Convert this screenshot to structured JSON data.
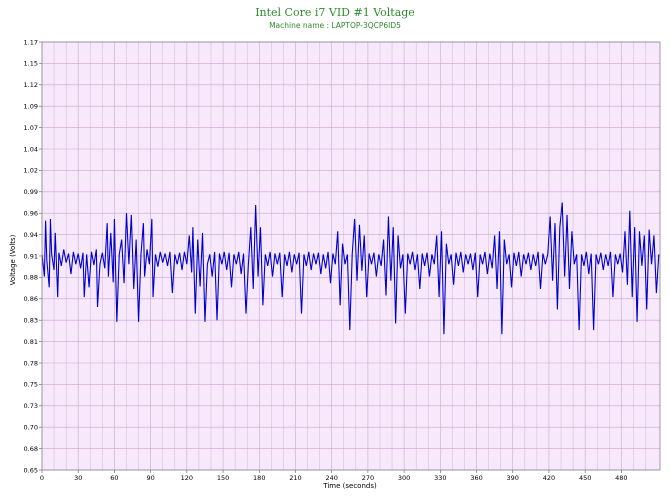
{
  "chart_data": {
    "type": "line",
    "title": "Intel Core i7 VID #1 Voltage",
    "subtitle": "Machine name : LAPTOP-3QCP6ID5",
    "xlabel": "Time (seconds)",
    "ylabel": "Voltage (Volts)",
    "xlim": [
      0,
      512
    ],
    "ylim": [
      0.65,
      1.17
    ],
    "x_ticks": [
      "0",
      "30",
      "60",
      "90",
      "120",
      "150",
      "180",
      "210",
      "240",
      "270",
      "300",
      "330",
      "360",
      "390",
      "420",
      "450",
      "480"
    ],
    "y_ticks": [
      "0.65",
      "0.68",
      "0.70",
      "0.73",
      "0.75",
      "0.78",
      "0.81",
      "0.83",
      "0.86",
      "0.88",
      "0.91",
      "0.94",
      "0.96",
      "0.99",
      "1.02",
      "1.04",
      "1.07",
      "1.09",
      "1.12",
      "1.15",
      "1.17"
    ],
    "grid": true,
    "colors": {
      "plot_background": "#f7e8fb",
      "grid": "#c8a9cc",
      "line": "#0000cc",
      "title": "#2e8b2e"
    },
    "series": [
      {
        "values": [
          {
            "x": 0,
            "y": 0.912
          },
          {
            "x": 2,
            "y": 0.885
          },
          {
            "x": 3,
            "y": 0.953
          },
          {
            "x": 4,
            "y": 0.905
          },
          {
            "x": 6,
            "y": 0.872
          },
          {
            "x": 7,
            "y": 0.955
          },
          {
            "x": 8,
            "y": 0.912
          },
          {
            "x": 10,
            "y": 0.893
          },
          {
            "x": 11,
            "y": 0.938
          },
          {
            "x": 13,
            "y": 0.86
          },
          {
            "x": 14,
            "y": 0.914
          },
          {
            "x": 16,
            "y": 0.898
          },
          {
            "x": 18,
            "y": 0.918
          },
          {
            "x": 20,
            "y": 0.902
          },
          {
            "x": 22,
            "y": 0.913
          },
          {
            "x": 24,
            "y": 0.888
          },
          {
            "x": 26,
            "y": 0.915
          },
          {
            "x": 28,
            "y": 0.9
          },
          {
            "x": 30,
            "y": 0.913
          },
          {
            "x": 32,
            "y": 0.895
          },
          {
            "x": 34,
            "y": 0.914
          },
          {
            "x": 35,
            "y": 0.86
          },
          {
            "x": 37,
            "y": 0.912
          },
          {
            "x": 39,
            "y": 0.872
          },
          {
            "x": 41,
            "y": 0.915
          },
          {
            "x": 43,
            "y": 0.899
          },
          {
            "x": 45,
            "y": 0.918
          },
          {
            "x": 46,
            "y": 0.848
          },
          {
            "x": 48,
            "y": 0.9
          },
          {
            "x": 50,
            "y": 0.914
          },
          {
            "x": 52,
            "y": 0.895
          },
          {
            "x": 54,
            "y": 0.95
          },
          {
            "x": 55,
            "y": 0.885
          },
          {
            "x": 57,
            "y": 0.938
          },
          {
            "x": 59,
            "y": 0.878
          },
          {
            "x": 60,
            "y": 0.955
          },
          {
            "x": 62,
            "y": 0.83
          },
          {
            "x": 64,
            "y": 0.912
          },
          {
            "x": 66,
            "y": 0.93
          },
          {
            "x": 68,
            "y": 0.877
          },
          {
            "x": 70,
            "y": 0.962
          },
          {
            "x": 72,
            "y": 0.9
          },
          {
            "x": 74,
            "y": 0.96
          },
          {
            "x": 76,
            "y": 0.87
          },
          {
            "x": 78,
            "y": 0.93
          },
          {
            "x": 80,
            "y": 0.83
          },
          {
            "x": 82,
            "y": 0.912
          },
          {
            "x": 84,
            "y": 0.95
          },
          {
            "x": 85,
            "y": 0.885
          },
          {
            "x": 87,
            "y": 0.918
          },
          {
            "x": 89,
            "y": 0.9
          },
          {
            "x": 91,
            "y": 0.955
          },
          {
            "x": 92,
            "y": 0.86
          },
          {
            "x": 94,
            "y": 0.912
          },
          {
            "x": 96,
            "y": 0.897
          },
          {
            "x": 98,
            "y": 0.915
          },
          {
            "x": 100,
            "y": 0.902
          },
          {
            "x": 102,
            "y": 0.913
          },
          {
            "x": 104,
            "y": 0.898
          },
          {
            "x": 106,
            "y": 0.915
          },
          {
            "x": 108,
            "y": 0.865
          },
          {
            "x": 110,
            "y": 0.912
          },
          {
            "x": 112,
            "y": 0.9
          },
          {
            "x": 114,
            "y": 0.914
          },
          {
            "x": 116,
            "y": 0.893
          },
          {
            "x": 118,
            "y": 0.915
          },
          {
            "x": 120,
            "y": 0.9
          },
          {
            "x": 122,
            "y": 0.935
          },
          {
            "x": 124,
            "y": 0.89
          },
          {
            "x": 125,
            "y": 0.945
          },
          {
            "x": 127,
            "y": 0.84
          },
          {
            "x": 129,
            "y": 0.93
          },
          {
            "x": 131,
            "y": 0.873
          },
          {
            "x": 133,
            "y": 0.938
          },
          {
            "x": 135,
            "y": 0.83
          },
          {
            "x": 137,
            "y": 0.9
          },
          {
            "x": 139,
            "y": 0.912
          },
          {
            "x": 141,
            "y": 0.885
          },
          {
            "x": 143,
            "y": 0.915
          },
          {
            "x": 145,
            "y": 0.832
          },
          {
            "x": 147,
            "y": 0.913
          },
          {
            "x": 149,
            "y": 0.9
          },
          {
            "x": 151,
            "y": 0.915
          },
          {
            "x": 153,
            "y": 0.893
          },
          {
            "x": 155,
            "y": 0.914
          },
          {
            "x": 157,
            "y": 0.872
          },
          {
            "x": 159,
            "y": 0.912
          },
          {
            "x": 161,
            "y": 0.9
          },
          {
            "x": 163,
            "y": 0.915
          },
          {
            "x": 165,
            "y": 0.888
          },
          {
            "x": 167,
            "y": 0.913
          },
          {
            "x": 169,
            "y": 0.84
          },
          {
            "x": 171,
            "y": 0.9
          },
          {
            "x": 173,
            "y": 0.945
          },
          {
            "x": 175,
            "y": 0.87
          },
          {
            "x": 177,
            "y": 0.972
          },
          {
            "x": 179,
            "y": 0.885
          },
          {
            "x": 181,
            "y": 0.945
          },
          {
            "x": 183,
            "y": 0.85
          },
          {
            "x": 185,
            "y": 0.912
          },
          {
            "x": 187,
            "y": 0.898
          },
          {
            "x": 189,
            "y": 0.915
          },
          {
            "x": 191,
            "y": 0.885
          },
          {
            "x": 193,
            "y": 0.913
          },
          {
            "x": 195,
            "y": 0.9
          },
          {
            "x": 197,
            "y": 0.914
          },
          {
            "x": 199,
            "y": 0.86
          },
          {
            "x": 201,
            "y": 0.912
          },
          {
            "x": 203,
            "y": 0.898
          },
          {
            "x": 205,
            "y": 0.915
          },
          {
            "x": 207,
            "y": 0.89
          },
          {
            "x": 209,
            "y": 0.912
          },
          {
            "x": 211,
            "y": 0.9
          },
          {
            "x": 213,
            "y": 0.914
          },
          {
            "x": 215,
            "y": 0.84
          },
          {
            "x": 217,
            "y": 0.912
          },
          {
            "x": 219,
            "y": 0.898
          },
          {
            "x": 221,
            "y": 0.915
          },
          {
            "x": 223,
            "y": 0.893
          },
          {
            "x": 225,
            "y": 0.913
          },
          {
            "x": 227,
            "y": 0.9
          },
          {
            "x": 229,
            "y": 0.914
          },
          {
            "x": 231,
            "y": 0.888
          },
          {
            "x": 233,
            "y": 0.912
          },
          {
            "x": 235,
            "y": 0.895
          },
          {
            "x": 237,
            "y": 0.915
          },
          {
            "x": 239,
            "y": 0.877
          },
          {
            "x": 241,
            "y": 0.913
          },
          {
            "x": 243,
            "y": 0.9
          },
          {
            "x": 245,
            "y": 0.94
          },
          {
            "x": 247,
            "y": 0.85
          },
          {
            "x": 249,
            "y": 0.925
          },
          {
            "x": 251,
            "y": 0.9
          },
          {
            "x": 253,
            "y": 0.912
          },
          {
            "x": 255,
            "y": 0.82
          },
          {
            "x": 257,
            "y": 0.912
          },
          {
            "x": 259,
            "y": 0.955
          },
          {
            "x": 261,
            "y": 0.88
          },
          {
            "x": 263,
            "y": 0.948
          },
          {
            "x": 265,
            "y": 0.892
          },
          {
            "x": 267,
            "y": 0.935
          },
          {
            "x": 269,
            "y": 0.86
          },
          {
            "x": 271,
            "y": 0.913
          },
          {
            "x": 273,
            "y": 0.9
          },
          {
            "x": 275,
            "y": 0.914
          },
          {
            "x": 277,
            "y": 0.885
          },
          {
            "x": 279,
            "y": 0.912
          },
          {
            "x": 281,
            "y": 0.898
          },
          {
            "x": 283,
            "y": 0.93
          },
          {
            "x": 285,
            "y": 0.862
          },
          {
            "x": 287,
            "y": 0.958
          },
          {
            "x": 289,
            "y": 0.88
          },
          {
            "x": 291,
            "y": 0.945
          },
          {
            "x": 293,
            "y": 0.828
          },
          {
            "x": 295,
            "y": 0.935
          },
          {
            "x": 297,
            "y": 0.895
          },
          {
            "x": 299,
            "y": 0.912
          },
          {
            "x": 301,
            "y": 0.84
          },
          {
            "x": 303,
            "y": 0.913
          },
          {
            "x": 305,
            "y": 0.9
          },
          {
            "x": 307,
            "y": 0.915
          },
          {
            "x": 309,
            "y": 0.893
          },
          {
            "x": 311,
            "y": 0.912
          },
          {
            "x": 313,
            "y": 0.87
          },
          {
            "x": 315,
            "y": 0.913
          },
          {
            "x": 317,
            "y": 0.898
          },
          {
            "x": 319,
            "y": 0.914
          },
          {
            "x": 321,
            "y": 0.885
          },
          {
            "x": 323,
            "y": 0.912
          },
          {
            "x": 325,
            "y": 0.9
          },
          {
            "x": 327,
            "y": 0.935
          },
          {
            "x": 329,
            "y": 0.86
          },
          {
            "x": 331,
            "y": 0.94
          },
          {
            "x": 333,
            "y": 0.815
          },
          {
            "x": 335,
            "y": 0.925
          },
          {
            "x": 337,
            "y": 0.9
          },
          {
            "x": 339,
            "y": 0.912
          },
          {
            "x": 341,
            "y": 0.875
          },
          {
            "x": 343,
            "y": 0.914
          },
          {
            "x": 345,
            "y": 0.898
          },
          {
            "x": 347,
            "y": 0.915
          },
          {
            "x": 349,
            "y": 0.89
          },
          {
            "x": 351,
            "y": 0.912
          },
          {
            "x": 353,
            "y": 0.9
          },
          {
            "x": 355,
            "y": 0.913
          },
          {
            "x": 357,
            "y": 0.893
          },
          {
            "x": 359,
            "y": 0.914
          },
          {
            "x": 361,
            "y": 0.86
          },
          {
            "x": 363,
            "y": 0.912
          },
          {
            "x": 365,
            "y": 0.9
          },
          {
            "x": 367,
            "y": 0.915
          },
          {
            "x": 369,
            "y": 0.888
          },
          {
            "x": 371,
            "y": 0.913
          },
          {
            "x": 373,
            "y": 0.895
          },
          {
            "x": 375,
            "y": 0.935
          },
          {
            "x": 377,
            "y": 0.87
          },
          {
            "x": 379,
            "y": 0.94
          },
          {
            "x": 381,
            "y": 0.815
          },
          {
            "x": 383,
            "y": 0.93
          },
          {
            "x": 385,
            "y": 0.9
          },
          {
            "x": 387,
            "y": 0.912
          },
          {
            "x": 389,
            "y": 0.872
          },
          {
            "x": 391,
            "y": 0.914
          },
          {
            "x": 393,
            "y": 0.898
          },
          {
            "x": 395,
            "y": 0.915
          },
          {
            "x": 397,
            "y": 0.885
          },
          {
            "x": 399,
            "y": 0.912
          },
          {
            "x": 401,
            "y": 0.9
          },
          {
            "x": 403,
            "y": 0.914
          },
          {
            "x": 405,
            "y": 0.893
          },
          {
            "x": 407,
            "y": 0.912
          },
          {
            "x": 409,
            "y": 0.898
          },
          {
            "x": 411,
            "y": 0.915
          },
          {
            "x": 413,
            "y": 0.87
          },
          {
            "x": 415,
            "y": 0.913
          },
          {
            "x": 417,
            "y": 0.9
          },
          {
            "x": 419,
            "y": 0.912
          },
          {
            "x": 421,
            "y": 0.958
          },
          {
            "x": 423,
            "y": 0.88
          },
          {
            "x": 425,
            "y": 0.95
          },
          {
            "x": 427,
            "y": 0.845
          },
          {
            "x": 429,
            "y": 0.945
          },
          {
            "x": 431,
            "y": 0.975
          },
          {
            "x": 433,
            "y": 0.885
          },
          {
            "x": 435,
            "y": 0.96
          },
          {
            "x": 437,
            "y": 0.87
          },
          {
            "x": 439,
            "y": 0.94
          },
          {
            "x": 441,
            "y": 0.9
          },
          {
            "x": 443,
            "y": 0.912
          },
          {
            "x": 445,
            "y": 0.82
          },
          {
            "x": 447,
            "y": 0.912
          },
          {
            "x": 449,
            "y": 0.898
          },
          {
            "x": 451,
            "y": 0.915
          },
          {
            "x": 453,
            "y": 0.888
          },
          {
            "x": 455,
            "y": 0.913
          },
          {
            "x": 457,
            "y": 0.82
          },
          {
            "x": 459,
            "y": 0.912
          },
          {
            "x": 461,
            "y": 0.9
          },
          {
            "x": 463,
            "y": 0.914
          },
          {
            "x": 465,
            "y": 0.893
          },
          {
            "x": 467,
            "y": 0.912
          },
          {
            "x": 469,
            "y": 0.898
          },
          {
            "x": 471,
            "y": 0.915
          },
          {
            "x": 473,
            "y": 0.86
          },
          {
            "x": 475,
            "y": 0.912
          },
          {
            "x": 477,
            "y": 0.9
          },
          {
            "x": 479,
            "y": 0.913
          },
          {
            "x": 481,
            "y": 0.89
          },
          {
            "x": 483,
            "y": 0.94
          },
          {
            "x": 485,
            "y": 0.875
          },
          {
            "x": 487,
            "y": 0.965
          },
          {
            "x": 489,
            "y": 0.86
          },
          {
            "x": 491,
            "y": 0.945
          },
          {
            "x": 493,
            "y": 0.83
          },
          {
            "x": 495,
            "y": 0.94
          },
          {
            "x": 497,
            "y": 0.898
          },
          {
            "x": 499,
            "y": 0.935
          },
          {
            "x": 501,
            "y": 0.845
          },
          {
            "x": 503,
            "y": 0.942
          },
          {
            "x": 505,
            "y": 0.9
          },
          {
            "x": 507,
            "y": 0.935
          },
          {
            "x": 509,
            "y": 0.865
          },
          {
            "x": 511,
            "y": 0.912
          }
        ]
      }
    ]
  }
}
